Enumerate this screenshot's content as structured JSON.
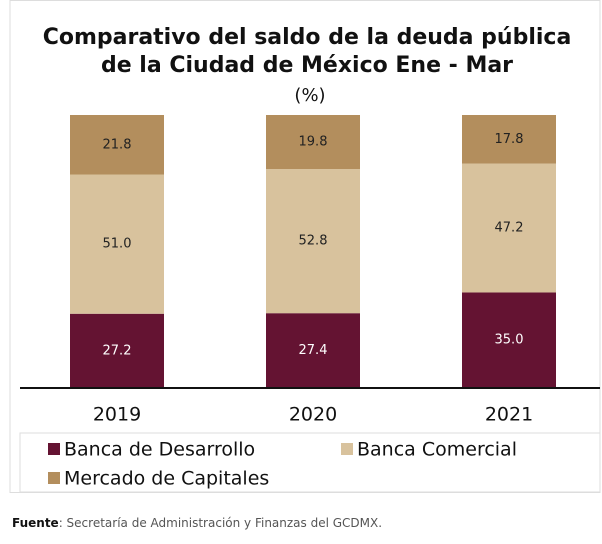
{
  "chart_data": {
    "type": "stacked_bar",
    "title": "Comparativo del saldo de la deuda pública",
    "title_line2": "de la Ciudad de México Ene - Mar",
    "subtitle": "(%)",
    "categories": [
      "2019",
      "2020",
      "2021"
    ],
    "series": [
      {
        "name": "Banca de Desarrollo",
        "color": "#641332",
        "label_color": "#ffffff",
        "values": [
          27.2,
          27.4,
          35
        ],
        "value_labels": [
          "27.2",
          "27.4",
          "35.0"
        ]
      },
      {
        "name": "Banca Comercial",
        "color": "#d8c29d",
        "label_color": "#222222",
        "values": [
          51,
          52.8,
          47.2
        ],
        "value_labels": [
          "51.0",
          "52.8",
          "47.2"
        ]
      },
      {
        "name": "Mercado de Capitales",
        "color": "#b38e5d",
        "label_color": "#222222",
        "values": [
          21.8,
          19.8,
          17.8
        ],
        "value_labels": [
          "21.8",
          "19.8",
          "17.8"
        ]
      }
    ],
    "ylim": [
      0,
      100
    ],
    "source_label": "Fuente",
    "source": ": Secretaría de Administración y Finanzas del GCDMX."
  }
}
